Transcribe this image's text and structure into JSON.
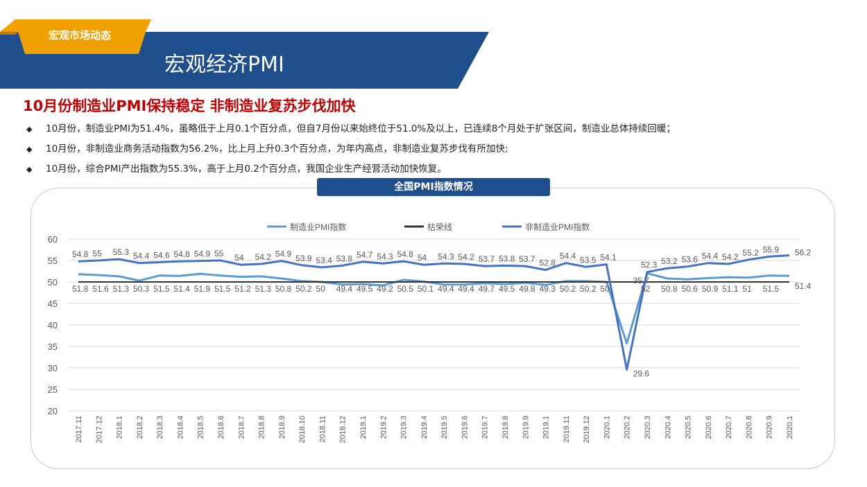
{
  "header": {
    "tag": "宏观市场动态",
    "title": "宏观经济PMI",
    "band_color": "#1f4e8c",
    "tag_color": "#f0a000"
  },
  "headline": "10月份制造业PMI保持稳定 非制造业复苏步伐加快",
  "bullets": [
    "10月份，制造业PMI为51.4%，虽略低于上月0.1个百分点，但自7月份以来始终位于51.0%及以上，已连续8个月处于扩张区间，制造业总体持续回暖；",
    "10月份，非制造业商务活动指数为56.2%，比上月上升0.3个百分点，为年内高点，非制造业复苏步伐有所加快;",
    "10月份，综合PMI产出指数为55.3%，高于上月0.2个百分点，我国企业生产经营活动加快恢复。"
  ],
  "chart_title": "全国PMI指数情况",
  "chart_data": {
    "type": "line",
    "categories": [
      "2017.11",
      "2017.12",
      "2018.1",
      "2018.2",
      "2018.3",
      "2018.4",
      "2018.5",
      "2018.6",
      "2018.7",
      "2018.8",
      "2018.9",
      "2018.10",
      "2018.11",
      "2018.12",
      "2019.1",
      "2019.2",
      "2019.3",
      "2019.4",
      "2019.5",
      "2019.6",
      "2019.7",
      "2019.8",
      "2019.9",
      "2019.1",
      "2019.11",
      "2019.12",
      "2020.1",
      "2020.2",
      "2020.3",
      "2020.4",
      "2020.5",
      "2020.6",
      "2020.7",
      "2020.8",
      "2020.9",
      "2020.1"
    ],
    "series": [
      {
        "name": "制造业PMI指数",
        "color": "#5b9bd5",
        "values": [
          51.8,
          51.6,
          51.3,
          50.3,
          51.5,
          51.4,
          51.9,
          51.5,
          51.2,
          51.3,
          50.8,
          50.2,
          50,
          49.4,
          49.5,
          49.2,
          50.5,
          50.1,
          49.4,
          49.4,
          49.7,
          49.5,
          49.8,
          49.3,
          50.2,
          50.2,
          50,
          35.7,
          52,
          50.8,
          50.6,
          50.9,
          51.1,
          51,
          51.5,
          51.4
        ]
      },
      {
        "name": "枯荣线",
        "color": "#333333",
        "values": [
          50,
          50,
          50,
          50,
          50,
          50,
          50,
          50,
          50,
          50,
          50,
          50,
          50,
          50,
          50,
          50,
          50,
          50,
          50,
          50,
          50,
          50,
          50,
          50,
          50,
          50,
          50,
          50,
          50,
          50,
          50,
          50,
          50,
          50,
          50,
          50
        ]
      },
      {
        "name": "非制造业PMI指数",
        "color": "#4472c4",
        "values": [
          54.8,
          55,
          55.3,
          54.4,
          54.6,
          54.8,
          54.9,
          55,
          54,
          54.2,
          54.9,
          53.9,
          53.4,
          53.8,
          54.7,
          54.3,
          54.8,
          54,
          54.3,
          54.2,
          53.7,
          53.8,
          53.7,
          52.8,
          54.4,
          53.5,
          54.1,
          29.6,
          52.3,
          53.2,
          53.6,
          54.4,
          54.2,
          55.2,
          55.9,
          56.2
        ]
      }
    ],
    "y_ticks": [
      "20",
      "25",
      "30",
      "35",
      "40",
      "45",
      "50",
      "55",
      "60"
    ],
    "ylim": [
      20,
      60
    ],
    "visible_labels": {
      "制造业PMI指数": [
        "51.8",
        "51.6",
        "51.3",
        "50.3",
        "51.5",
        "51.4",
        "51.9",
        "51.5",
        "51.2",
        "51.3",
        "50.8",
        "50.2",
        "50",
        "49.4",
        "49.5",
        "49.2",
        "50.5",
        "50.1",
        "49.4",
        "49.4",
        "49.7",
        "49.5",
        "49.8",
        "49.3",
        "50.2",
        "50.2",
        "50",
        "35.7",
        "52",
        "50.8",
        "50.6",
        "50.9",
        "51.1",
        "51",
        "51.5",
        "51.4"
      ],
      "非制造业PMI指数": [
        "54.8",
        "55",
        "55.3",
        "54.4",
        "54.6",
        "54.8",
        "54.9",
        "55",
        "54",
        "54.2",
        "54.9",
        "53.9",
        "53.4",
        "53.8",
        "54.7",
        "54.3",
        "54.8",
        "54",
        "54.3",
        "54.2",
        "53.7",
        "53.8",
        "53.7",
        "52.8",
        "54.4",
        "53.5",
        "54.1",
        "29.6",
        "52.3",
        "53.2",
        "53.6",
        "54.4",
        "54.2",
        "55.2",
        "55.9",
        "56.2"
      ]
    },
    "grid": true,
    "legend": "top"
  }
}
